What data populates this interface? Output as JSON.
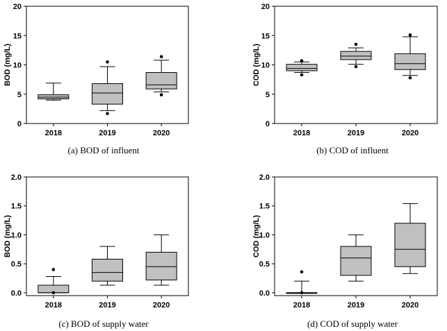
{
  "chart_data": [
    {
      "type": "box",
      "caption": "(a)  BOD  of  influent",
      "ylabel": "BOD (mg/L)",
      "ylim": [
        0,
        20
      ],
      "yticks": [
        0,
        5,
        10,
        15,
        20
      ],
      "yticklabels": [
        "0",
        "5",
        "10",
        "15",
        "20"
      ],
      "categories": [
        "2018",
        "2019",
        "2020"
      ],
      "boxes": [
        {
          "whisker_low": 4.0,
          "q1": 4.2,
          "median": 4.5,
          "q3": 4.9,
          "whisker_high": 6.9,
          "outliers": []
        },
        {
          "whisker_low": 2.2,
          "q1": 3.3,
          "median": 5.2,
          "q3": 6.8,
          "whisker_high": 9.7,
          "outliers": [
            1.7,
            10.5
          ]
        },
        {
          "whisker_low": 5.4,
          "q1": 5.9,
          "median": 6.6,
          "q3": 8.7,
          "whisker_high": 10.8,
          "outliers": [
            4.9,
            11.4
          ]
        }
      ]
    },
    {
      "type": "box",
      "caption": "(b)  COD  of  influent",
      "ylabel": "COD (mg/L)",
      "ylim": [
        0,
        20
      ],
      "yticks": [
        0,
        5,
        10,
        15,
        20
      ],
      "yticklabels": [
        "0",
        "5",
        "10",
        "15",
        "20"
      ],
      "categories": [
        "2018",
        "2019",
        "2020"
      ],
      "boxes": [
        {
          "whisker_low": 8.7,
          "q1": 9.0,
          "median": 9.4,
          "q3": 10.1,
          "whisker_high": 10.5,
          "outliers": [
            8.3,
            10.7
          ]
        },
        {
          "whisker_low": 10.1,
          "q1": 10.9,
          "median": 11.5,
          "q3": 12.3,
          "whisker_high": 12.9,
          "outliers": [
            9.7,
            13.5
          ]
        },
        {
          "whisker_low": 8.2,
          "q1": 9.2,
          "median": 10.2,
          "q3": 11.9,
          "whisker_high": 14.8,
          "outliers": [
            7.8,
            15.1
          ]
        }
      ]
    },
    {
      "type": "box",
      "caption": "(c)  BOD  of  supply  water",
      "ylabel": "BOD (mg/L)",
      "ylim": [
        -0.05,
        2.0
      ],
      "yticks": [
        0,
        0.5,
        1.0,
        1.5,
        2.0
      ],
      "yticklabels": [
        "0.0",
        "0.5",
        "1.0",
        "1.5",
        "2.0"
      ],
      "categories": [
        "2018",
        "2019",
        "2020"
      ],
      "boxes": [
        {
          "whisker_low": 0.0,
          "q1": 0.0,
          "median": 0.0,
          "q3": 0.13,
          "whisker_high": 0.28,
          "outliers": [
            0.0,
            0.4
          ]
        },
        {
          "whisker_low": 0.13,
          "q1": 0.2,
          "median": 0.35,
          "q3": 0.58,
          "whisker_high": 0.8,
          "outliers": []
        },
        {
          "whisker_low": 0.13,
          "q1": 0.22,
          "median": 0.45,
          "q3": 0.7,
          "whisker_high": 1.0,
          "outliers": []
        }
      ]
    },
    {
      "type": "box",
      "caption": "(d)  COD  of  supply  water",
      "ylabel": "COD (mg/L)",
      "ylim": [
        -0.05,
        2.0
      ],
      "yticks": [
        0,
        0.5,
        1.0,
        1.5,
        2.0
      ],
      "yticklabels": [
        "0.0",
        "0.5",
        "1.0",
        "1.5",
        "2.0"
      ],
      "categories": [
        "2018",
        "2019",
        "2020"
      ],
      "boxes": [
        {
          "whisker_low": 0.0,
          "q1": 0.0,
          "median": 0.0,
          "q3": 0.0,
          "whisker_high": 0.2,
          "outliers": [
            0.0,
            0.36
          ]
        },
        {
          "whisker_low": 0.2,
          "q1": 0.3,
          "median": 0.6,
          "q3": 0.8,
          "whisker_high": 1.0,
          "outliers": []
        },
        {
          "whisker_low": 0.33,
          "q1": 0.45,
          "median": 0.75,
          "q3": 1.2,
          "whisker_high": 1.54,
          "outliers": []
        }
      ]
    }
  ],
  "colors": {
    "box_fill": "#c0c0c0",
    "line": "#000000",
    "frame": "#000000"
  }
}
